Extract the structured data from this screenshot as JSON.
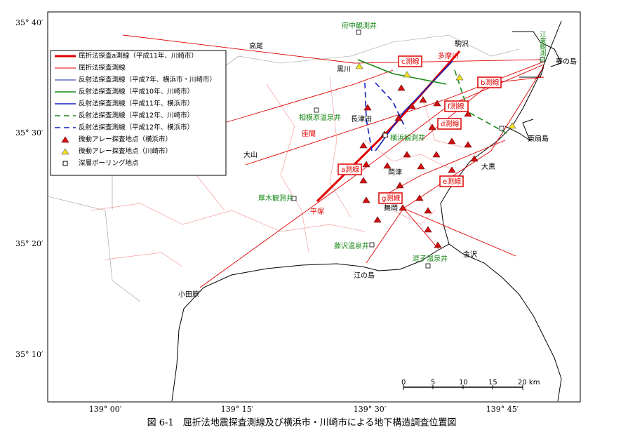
{
  "caption": "図 6-1　屈折法地震探査測線及び横浜市・川崎市による地下構造調査位置図",
  "lat_labels": [
    "35° 40′",
    "35° 30′",
    "35° 20′",
    "35° 10′"
  ],
  "lon_labels": [
    "139° 00′",
    "139° 15′",
    "139° 30′",
    "139° 45′"
  ],
  "legend": [
    "屈折法探査a測線（平成11年、川崎市）",
    "屈折法探査測線",
    "反射法探査測線（平成7年、横浜市・川崎市）",
    "反射法探査測線（平成10年、川崎市）",
    "反射法探査測線（平成11年、横浜市）",
    "反射法探査測線（平成12年、川崎市）",
    "反射法探査測線（平成12年、横浜市）",
    "微動アレー探査地点（横浜市）",
    "微動アレー探査地点（川崎市）",
    "深層ボーリング地点"
  ],
  "places": [
    "高尾",
    "府中観測井",
    "駒沢",
    "黒川",
    "多摩川",
    "江東観測井",
    "夢の島",
    "相模原温泉井",
    "長津田",
    "横浜観測井",
    "東扇島",
    "座間",
    "大山",
    "大黒",
    "岡津",
    "平塚",
    "厚木観測井",
    "舞岡",
    "藤沢温泉井",
    "金沢",
    "逗子温泉井",
    "江の島",
    "小田原"
  ],
  "survey_lines": [
    "a測線",
    "b測線",
    "c測線",
    "d測線",
    "e測線",
    "f測線",
    "g測線"
  ],
  "scale": [
    "0",
    "5",
    "10",
    "15",
    "20 km"
  ]
}
